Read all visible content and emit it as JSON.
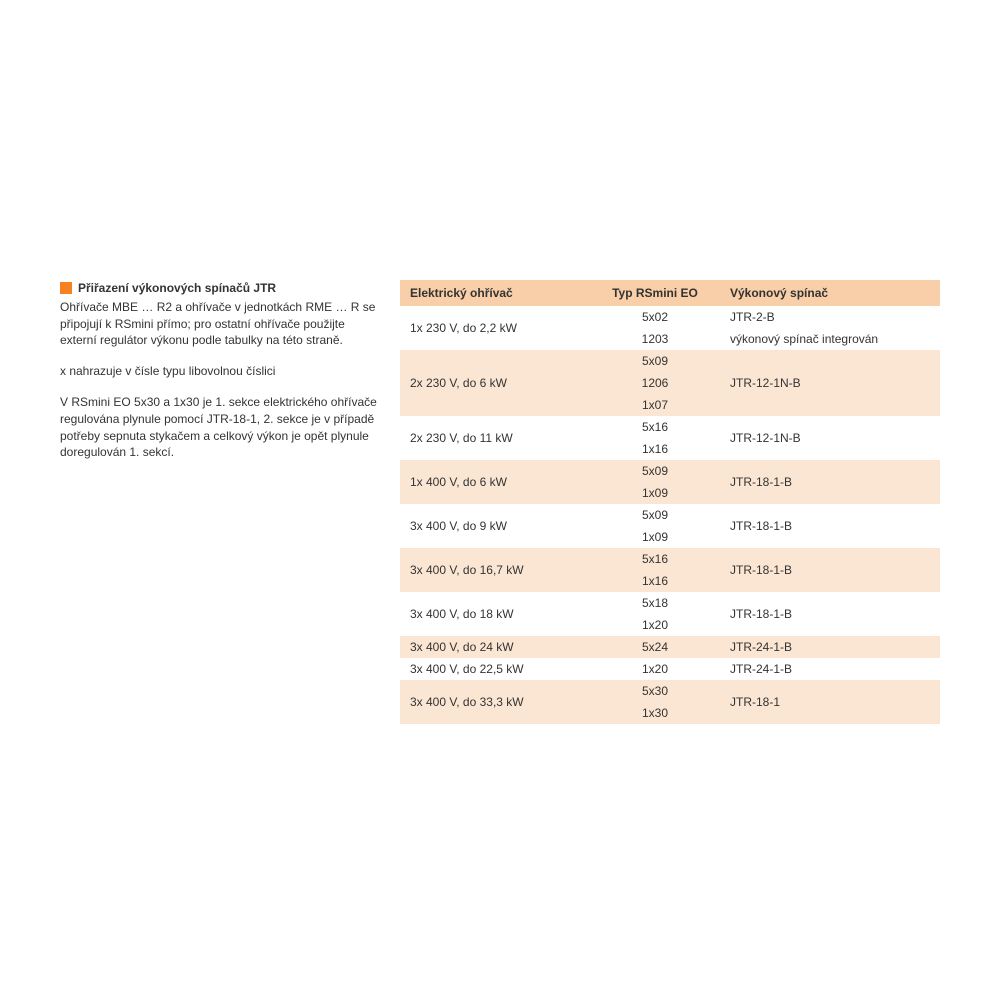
{
  "left": {
    "title": "Přiřazení výkonových spínačů JTR",
    "p1": "Ohřívače MBE … R2 a ohřívače v jednotkách RME … R se připojují k RSmini přímo; pro ostatní ohřívače použijte externí regulátor výkonu podle tabulky na této straně.",
    "p2": "x nahrazuje v čísle typu libovolnou číslici",
    "p3": "V RSmini EO 5x30 a 1x30 je 1. sekce elektrického ohřívače regulována plynule pomocí JTR-18-1, 2. sekce je v případě potřeby sepnuta stykačem a celkový výkon je opět plynule doregulován 1. sekcí."
  },
  "table": {
    "headers": {
      "heater": "Elektrický ohřívač",
      "type": "Typ RSmini EO",
      "switch": "Výkonový spínač"
    },
    "colors": {
      "header_bg": "#f8cfa8",
      "shade_bg": "#fbe6d3",
      "noshade_bg": "#ffffff",
      "accent": "#f58220"
    },
    "groups": [
      {
        "heater": "1x 230 V, do 2,2 kW",
        "switch": "JTR-2-B",
        "switch2": "výkonový spínač integrován",
        "types": [
          "5x02",
          "1203"
        ],
        "shade": false,
        "split_switch": true
      },
      {
        "heater": "2x 230 V, do 6 kW",
        "switch": "JTR-12-1N-B",
        "types": [
          "5x09",
          "1206",
          "1x07"
        ],
        "shade": true
      },
      {
        "heater": "2x 230 V, do 11 kW",
        "switch": "JTR-12-1N-B",
        "types": [
          "5x16",
          "1x16"
        ],
        "shade": false
      },
      {
        "heater": "1x 400 V, do 6 kW",
        "switch": "JTR-18-1-B",
        "types": [
          "5x09",
          "1x09"
        ],
        "shade": true
      },
      {
        "heater": "3x 400 V, do 9 kW",
        "switch": "JTR-18-1-B",
        "types": [
          "5x09",
          "1x09"
        ],
        "shade": false
      },
      {
        "heater": "3x 400 V, do 16,7 kW",
        "switch": "JTR-18-1-B",
        "types": [
          "5x16",
          "1x16"
        ],
        "shade": true
      },
      {
        "heater": "3x 400 V, do 18 kW",
        "switch": "JTR-18-1-B",
        "types": [
          "5x18",
          "1x20"
        ],
        "shade": false
      },
      {
        "heater": "3x 400 V, do 24 kW",
        "switch": "JTR-24-1-B",
        "types": [
          "5x24"
        ],
        "shade": true
      },
      {
        "heater": "3x 400 V, do 22,5 kW",
        "switch": "JTR-24-1-B",
        "types": [
          "1x20"
        ],
        "shade": false
      },
      {
        "heater": "3x 400 V, do 33,3 kW",
        "switch": "JTR-18-1",
        "types": [
          "5x30",
          "1x30"
        ],
        "shade": true
      }
    ]
  }
}
